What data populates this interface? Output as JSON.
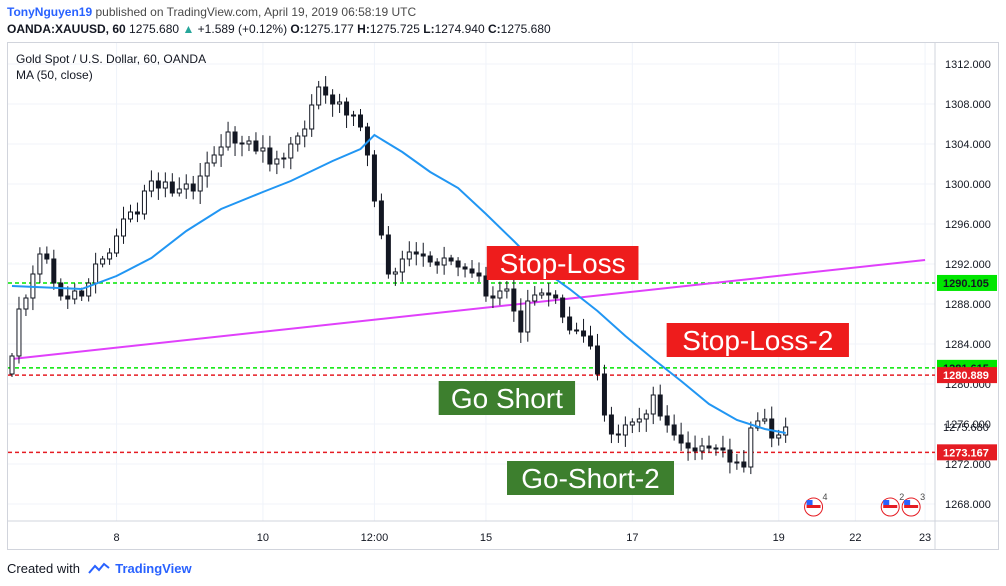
{
  "header": {
    "author": "TonyNguyen19",
    "published": "published on TradingView.com, April 19, 2019 06:58:19 UTC",
    "symbol": "OANDA:XAUUSD, 60",
    "last": "1275.680",
    "arrow": "▲",
    "change": "+1.589 (+0.12%)",
    "o_label": "O:",
    "o": "1275.177",
    "h_label": "H:",
    "h": "1275.725",
    "l_label": "L:",
    "l": "1274.940",
    "c_label": "C:",
    "c": "1275.680"
  },
  "legend": {
    "title": "Gold Spot / U.S. Dollar, 60, OANDA",
    "indicator": "MA (50, close)"
  },
  "footer": {
    "created_with": "Created with",
    "brand": "TradingView"
  },
  "colors": {
    "candle": "#131722",
    "ma": "#2196f3",
    "trendline": "#e040fb",
    "green_line": "#00e600",
    "red_line": "#e51c23",
    "label_red": "#ee1c1c",
    "label_green": "#3d7f2e",
    "grid": "#f0f3fa"
  },
  "chart_data": {
    "type": "candlestick",
    "title": "Gold Spot / U.S. Dollar, 60, OANDA",
    "ylim": [
      1266,
      1314
    ],
    "y_ticks": [
      "1312.000",
      "1308.000",
      "1304.000",
      "1300.000",
      "1296.000",
      "1292.000",
      "1288.000",
      "1284.000",
      "1280.000",
      "1276.000",
      "1272.000",
      "1268.000"
    ],
    "x_ticks": [
      {
        "label": "8",
        "idx": 15
      },
      {
        "label": "10",
        "idx": 36
      },
      {
        "label": "12:00",
        "idx": 52
      },
      {
        "label": "15",
        "idx": 68
      },
      {
        "label": "17",
        "idx": 89
      },
      {
        "label": "19",
        "idx": 110
      },
      {
        "label": "22",
        "idx": 121
      },
      {
        "label": "23",
        "idx": 131
      }
    ],
    "ohlc_close": [
      1282.8,
      1287.5,
      1288.6,
      1291.0,
      1293.0,
      1292.5,
      1290.1,
      1288.8,
      1288.5,
      1289.3,
      1288.8,
      1290.1,
      1292.0,
      1292.5,
      1293.1,
      1294.8,
      1296.5,
      1297.2,
      1297.0,
      1299.3,
      1300.3,
      1299.6,
      1300.2,
      1299.1,
      1299.5,
      1300.0,
      1299.3,
      1300.8,
      1302.1,
      1302.9,
      1303.7,
      1305.2,
      1304.1,
      1304.0,
      1304.3,
      1303.3,
      1303.6,
      1302.0,
      1302.5,
      1302.6,
      1304.0,
      1304.8,
      1305.5,
      1307.9,
      1309.7,
      1308.9,
      1308.0,
      1308.2,
      1306.9,
      1306.9,
      1305.7,
      1302.9,
      1298.3,
      1294.9,
      1291.0,
      1291.2,
      1292.5,
      1293.2,
      1293.0,
      1292.8,
      1292.2,
      1291.9,
      1292.6,
      1292.3,
      1291.7,
      1291.5,
      1291.1,
      1290.8,
      1288.8,
      1288.6,
      1289.3,
      1289.5,
      1287.3,
      1285.2,
      1288.3,
      1288.9,
      1289.1,
      1288.9,
      1288.6,
      1286.7,
      1285.4,
      1285.3,
      1284.8,
      1283.8,
      1281.0,
      1276.9,
      1275.0,
      1274.9,
      1275.9,
      1276.2,
      1276.5,
      1277.0,
      1278.9,
      1276.8,
      1275.9,
      1274.9,
      1274.1,
      1273.6,
      1273.3,
      1273.8,
      1273.6,
      1273.6,
      1273.4,
      1272.2,
      1272.2,
      1271.7,
      1275.6,
      1276.3,
      1276.5,
      1274.6,
      1274.9,
      1275.7
    ],
    "ohlc_open_first": 1281.0,
    "ma50": [
      {
        "idx": 0,
        "v": 1289.8
      },
      {
        "idx": 10,
        "v": 1289.5
      },
      {
        "idx": 15,
        "v": 1290.8
      },
      {
        "idx": 20,
        "v": 1292.6
      },
      {
        "idx": 25,
        "v": 1295.3
      },
      {
        "idx": 30,
        "v": 1297.5
      },
      {
        "idx": 36,
        "v": 1299.2
      },
      {
        "idx": 40,
        "v": 1300.3
      },
      {
        "idx": 46,
        "v": 1302.3
      },
      {
        "idx": 50,
        "v": 1303.5
      },
      {
        "idx": 52,
        "v": 1304.9
      },
      {
        "idx": 56,
        "v": 1303.2
      },
      {
        "idx": 60,
        "v": 1301.2
      },
      {
        "idx": 64,
        "v": 1299.6
      },
      {
        "idx": 68,
        "v": 1297.0
      },
      {
        "idx": 72,
        "v": 1294.3
      },
      {
        "idx": 76,
        "v": 1291.5
      },
      {
        "idx": 80,
        "v": 1289.5
      },
      {
        "idx": 84,
        "v": 1287.3
      },
      {
        "idx": 88,
        "v": 1284.8
      },
      {
        "idx": 92,
        "v": 1282.5
      },
      {
        "idx": 96,
        "v": 1280.3
      },
      {
        "idx": 100,
        "v": 1278.0
      },
      {
        "idx": 104,
        "v": 1276.4
      },
      {
        "idx": 108,
        "v": 1275.5
      },
      {
        "idx": 111,
        "v": 1275.1
      }
    ],
    "trendline": {
      "x1": 0,
      "y1": 1282.5,
      "x2": 131,
      "y2": 1292.4
    },
    "levels": [
      {
        "value": 1290.105,
        "label": "1290.105",
        "color": "#00e600",
        "kind": "green"
      },
      {
        "value": 1281.615,
        "label": "1281.615",
        "color": "#00e600",
        "kind": "green"
      },
      {
        "value": 1280.889,
        "label": "1280.889",
        "color": "#e51c23",
        "kind": "red"
      },
      {
        "value": 1273.167,
        "label": "1273.167",
        "color": "#e51c23",
        "kind": "red"
      }
    ],
    "last_price": {
      "value": 1275.68,
      "label": "1275.680"
    },
    "annotations": [
      {
        "text": "Stop-Loss",
        "idx": 79,
        "y": 1292.1,
        "bg": "#ee1c1c"
      },
      {
        "text": "Stop-Loss-2",
        "idx": 107,
        "y": 1284.4,
        "bg": "#ee1c1c"
      },
      {
        "text": "Go Short",
        "idx": 71,
        "y": 1278.6,
        "bg": "#3d7f2e"
      },
      {
        "text": "Go-Short-2",
        "idx": 83,
        "y": 1270.6,
        "bg": "#3d7f2e"
      }
    ],
    "event_icons": [
      {
        "idx": 115,
        "badge": "4"
      },
      {
        "idx": 126,
        "badge": "2"
      },
      {
        "idx": 129,
        "badge": "3"
      }
    ]
  }
}
